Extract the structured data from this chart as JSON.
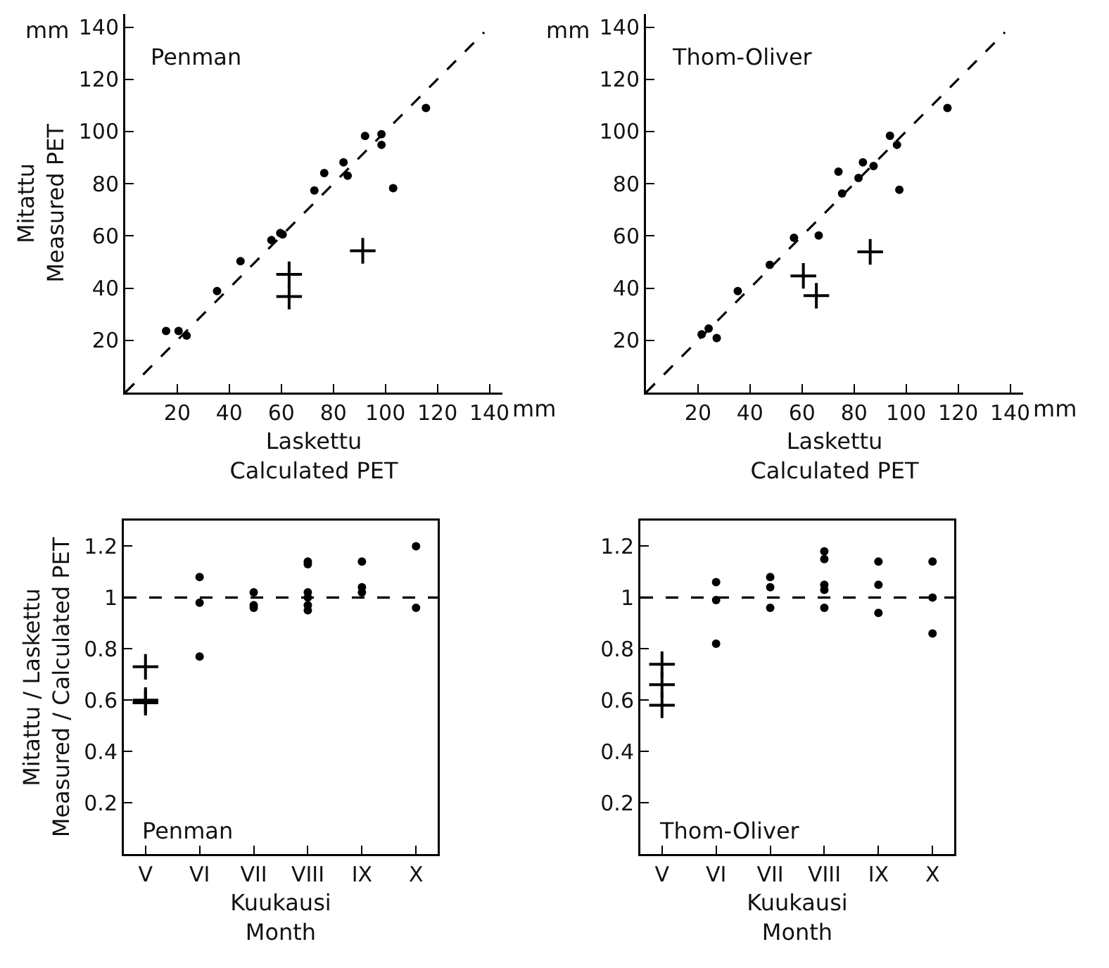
{
  "chart_data": [
    {
      "type": "scatter",
      "xlabel": "Laskettu\nCalculated PET",
      "ylabel": "Mitattu\nMeasured PET",
      "annotations": [
        "Penman",
        "mm",
        "mm"
      ],
      "xlim": [
        0,
        145
      ],
      "ylim": [
        0,
        145
      ],
      "xticks": [
        20,
        40,
        60,
        80,
        100,
        120,
        140
      ],
      "yticks": [
        20,
        40,
        60,
        80,
        100,
        120,
        140
      ],
      "grid": false,
      "series": [
        {
          "type": "line",
          "color": "#000000",
          "line_style": "dashed",
          "marker": "none",
          "x": [
            0,
            138
          ],
          "values": [
            0,
            138
          ]
        },
        {
          "color": "#000000",
          "marker": "circle",
          "x": [
            15.7,
            20.5,
            23.6,
            35.3,
            44.3,
            56.2,
            59.6,
            60.5,
            72.7,
            76.5,
            83.9,
            85.5,
            92.2,
            98.5,
            98.5,
            103,
            115.6
          ],
          "values": [
            23.6,
            23.6,
            21.8,
            38.9,
            50.3,
            58.4,
            61.1,
            60.6,
            77.4,
            84.1,
            88.2,
            83.1,
            98.3,
            99,
            94.9,
            78.3,
            109
          ]
        },
        {
          "color": "#000000",
          "marker": "cross",
          "x": [
            63,
            63,
            91.3
          ],
          "values": [
            45.3,
            36.8,
            54.3
          ]
        }
      ]
    },
    {
      "type": "scatter",
      "xlabel": "Laskettu\nCalculated PET",
      "annotations": [
        "Thom-Oliver",
        "mm",
        "mm"
      ],
      "xlim": [
        0,
        145
      ],
      "ylim": [
        0,
        145
      ],
      "xticks": [
        20,
        40,
        60,
        80,
        100,
        120,
        140
      ],
      "yticks": [
        20,
        40,
        60,
        80,
        100,
        120,
        140
      ],
      "grid": false,
      "series": [
        {
          "type": "line",
          "color": "#000000",
          "line_style": "dashed",
          "marker": "none",
          "x": [
            0,
            138
          ],
          "values": [
            0,
            138
          ]
        },
        {
          "color": "#000000",
          "marker": "circle",
          "x": [
            21.4,
            24.1,
            27.2,
            35.3,
            47.6,
            56.9,
            66.4,
            74,
            75.4,
            81.7,
            83.4,
            87.5,
            93.8,
            96.5,
            97.4,
            115.9
          ],
          "values": [
            22.3,
            24.5,
            20.9,
            38.9,
            48.9,
            59.3,
            60.2,
            84.6,
            76.3,
            82.2,
            88.2,
            86.8,
            98.4,
            94.9,
            77.7,
            109
          ]
        },
        {
          "color": "#000000",
          "marker": "cross",
          "x": [
            60.5,
            65.5,
            86.2
          ],
          "values": [
            44.7,
            37.1,
            53.9
          ]
        }
      ]
    },
    {
      "type": "scatter",
      "xlabel": "Kuukausi\nMonth",
      "ylabel": "Mitattu / Laskettu\nMeasured / Calculated PET",
      "annotations": [
        "Penman"
      ],
      "categories": [
        "V",
        "VI",
        "VII",
        "VIII",
        "IX",
        "X"
      ],
      "ylim": [
        0,
        1.3
      ],
      "yticks": [
        0.2,
        0.4,
        0.6,
        0.8,
        1.0,
        1.2
      ],
      "grid": false,
      "ref_lines": [
        {
          "axis": "y",
          "value": 1.0,
          "color": "#000000",
          "line_style": "dashed"
        }
      ],
      "series": [
        {
          "color": "#000000",
          "marker": "circle",
          "x": [
            "VI",
            "VI",
            "VI",
            "VII",
            "VII",
            "VII",
            "VIII",
            "VIII",
            "VIII",
            "VIII",
            "VIII",
            "VIII",
            "IX",
            "IX",
            "IX",
            "X",
            "X"
          ],
          "values": [
            0.77,
            1.08,
            0.98,
            0.96,
            0.97,
            1.02,
            1.13,
            1.14,
            1.02,
            0.95,
            1.0,
            0.97,
            1.04,
            1.02,
            1.14,
            1.2,
            0.96
          ]
        },
        {
          "color": "#000000",
          "marker": "cross",
          "x": [
            "V",
            "V",
            "V"
          ],
          "values": [
            0.73,
            0.6,
            0.59
          ]
        }
      ]
    },
    {
      "type": "scatter",
      "xlabel": "Kuukausi\nMonth",
      "annotations": [
        "Thom-Oliver"
      ],
      "categories": [
        "V",
        "VI",
        "VII",
        "VIII",
        "IX",
        "X"
      ],
      "ylim": [
        0,
        1.3
      ],
      "yticks": [
        0.2,
        0.4,
        0.6,
        0.8,
        1.0,
        1.2
      ],
      "grid": false,
      "ref_lines": [
        {
          "axis": "y",
          "value": 1.0,
          "color": "#000000",
          "line_style": "dashed"
        }
      ],
      "series": [
        {
          "color": "#000000",
          "marker": "circle",
          "x": [
            "VI",
            "VI",
            "VI",
            "VII",
            "VII",
            "VII",
            "VIII",
            "VIII",
            "VIII",
            "VIII",
            "VIII",
            "IX",
            "IX",
            "IX",
            "X",
            "X",
            "X"
          ],
          "values": [
            0.82,
            0.99,
            1.06,
            1.08,
            1.04,
            0.96,
            1.15,
            1.18,
            1.05,
            1.03,
            0.96,
            1.05,
            1.14,
            0.94,
            1.14,
            1.0,
            0.86
          ]
        },
        {
          "color": "#000000",
          "marker": "cross",
          "x": [
            "V",
            "V",
            "V"
          ],
          "values": [
            0.74,
            0.66,
            0.58
          ]
        }
      ]
    }
  ]
}
